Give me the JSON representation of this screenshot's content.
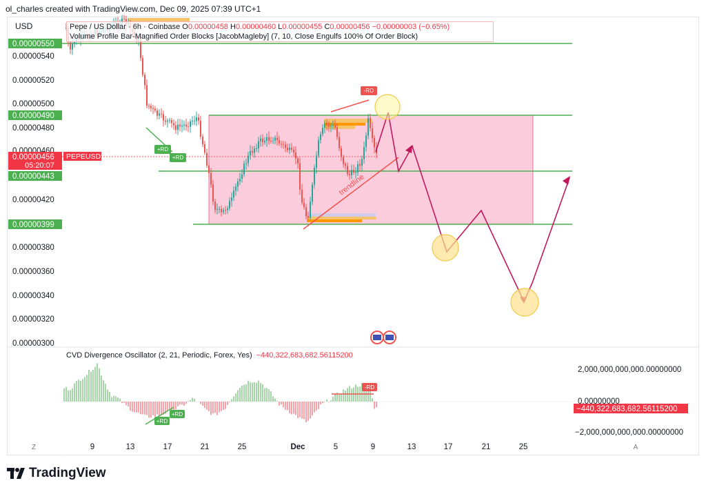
{
  "header": {
    "text": "ol_charles created with TradingView.com, Dec 09, 2025 07:39 UTC+1"
  },
  "currency": "USD",
  "legend": {
    "line1_prefix": "Pepe / US Dollar · 6h · Coinbase",
    "o_label": "O",
    "o_value": "0.00000458",
    "h_label": "H",
    "h_value": "0.00000460",
    "l_label": "L",
    "l_value": "0.00000455",
    "c_label": "C",
    "c_value": "0.00000456",
    "change": "−0.00000003 (−0.65%)",
    "line2": "Volume Profile Bar-Magnified Order Blocks [JacobMagleby] (7, 10, Close Engulfs 100% Of Order Block)"
  },
  "price_axis": {
    "ticks": [
      "0.00000540",
      "0.00000520",
      "0.00000500",
      "0.00000480",
      "0.00000420",
      "0.00000380",
      "0.00000360",
      "0.00000340",
      "0.00000320",
      "0.00000300"
    ],
    "hidden_tick": "0.00000460",
    "labels_green": [
      "0.00000550",
      "0.00000490",
      "0.00000443",
      "0.00000399"
    ],
    "current_price": "0.00000456",
    "countdown": "05:20:07",
    "symbol": "PEPEUSD"
  },
  "indicator": {
    "title": "CVD Divergence Oscillator (2, 21, Periodic, Forex, Yes)",
    "value": "−440,322,683,682.56115200",
    "ticks": [
      "2,000,000,000,000.00000000",
      "0.00000000",
      "−2,000,000,000,000.00000000"
    ],
    "current": "−440,322,683,682.56115200"
  },
  "time_axis": {
    "ticks": [
      "9",
      "13",
      "17",
      "21",
      "25",
      "Dec",
      "5",
      "9",
      "13",
      "17",
      "21",
      "25"
    ],
    "left_button": "Z",
    "right_button": "A"
  },
  "annotations": {
    "rd_bear": "-RD",
    "rd_bull": "+RD",
    "trendline": "trendline"
  },
  "colors": {
    "up": "#26a69a",
    "up_light": "#a5d6a7",
    "down": "#ef5350",
    "down_light": "#f5a3a8",
    "green_level": "#4caf50",
    "box_fill": "#f8bbd0",
    "path": "#c2185b",
    "circle": "#fde08b"
  },
  "footer": {
    "brand": "TradingView"
  },
  "chart_data": {
    "type": "candlestick",
    "price_range": [
      3e-06,
      5.6e-06
    ],
    "levels": [
      5.5e-06,
      4.9e-06,
      4.43e-06,
      3.99e-06
    ],
    "range_box": {
      "top": 4.9e-06,
      "bottom": 3.99e-06
    },
    "projection_path_y": [
      4.9e-06,
      4.43e-06,
      4.65e-06,
      3.78e-06,
      4.1e-06,
      3.34e-06,
      4.35e-06
    ],
    "histogram_sample": [
      0.5,
      0.7,
      0.9,
      1.0,
      0.8,
      0.6,
      0.3,
      -0.2,
      -0.4,
      -0.6,
      -0.5,
      -0.3,
      0.2,
      0.5,
      0.9,
      1.0,
      0.6,
      -0.2,
      -0.6,
      -0.9,
      -1.0,
      -0.7,
      -0.3,
      0.2,
      0.4,
      0.5,
      -0.4
    ]
  }
}
